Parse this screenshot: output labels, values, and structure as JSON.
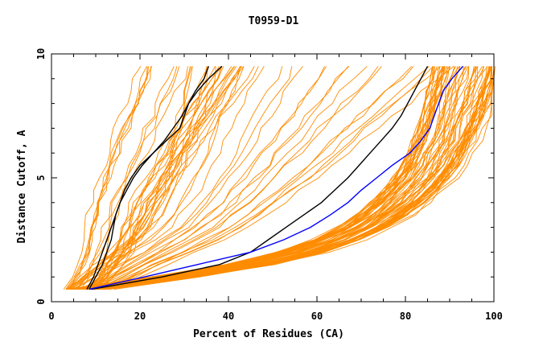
{
  "chart_data": {
    "type": "line",
    "title": "T0959-D1",
    "xlabel": "Percent of Residues (CA)",
    "ylabel": "Distance Cutoff, A",
    "xlim": [
      0,
      100
    ],
    "ylim": [
      0,
      10
    ],
    "x_ticks": [
      0,
      20,
      40,
      60,
      80,
      100
    ],
    "y_ticks": [
      0,
      5,
      10
    ],
    "colors": {
      "models": "#ff8c00",
      "highlight": "#000000",
      "best": "#0000ff",
      "axes": "#000000"
    },
    "cutoffs": [
      0.5,
      1,
      1.5,
      2,
      2.5,
      3,
      3.5,
      4,
      4.5,
      5,
      5.5,
      6,
      6.5,
      7,
      7.5,
      8,
      8.5,
      9,
      9.5
    ],
    "highlight_series": [
      {
        "name": "black-1",
        "color": "#000000",
        "values": [
          8,
          9.5,
          10.5,
          11.5,
          12.5,
          13.5,
          14.5,
          15.5,
          17,
          18.5,
          20.5,
          23,
          25.5,
          27.5,
          29.5,
          31,
          33,
          35.5,
          38.5
        ]
      },
      {
        "name": "black-2",
        "color": "#000000",
        "values": [
          8.5,
          10,
          11.5,
          12.5,
          13.5,
          14,
          14.5,
          15.5,
          16.5,
          18,
          20,
          23,
          26,
          29,
          30,
          31,
          32.5,
          34.5,
          35.5
        ]
      },
      {
        "name": "black-3",
        "color": "#000000",
        "values": [
          9,
          25,
          38,
          45,
          49,
          53,
          57,
          61,
          64,
          67,
          69.5,
          72,
          74.5,
          77,
          79,
          80.5,
          82,
          83.5,
          85
        ]
      },
      {
        "name": "blue-best",
        "color": "#0000ff",
        "values": [
          8.5,
          21,
          33,
          45,
          52.5,
          58.5,
          63,
          67,
          70,
          73.5,
          77,
          81,
          83.5,
          85.5,
          86.5,
          87.5,
          88.5,
          90.5,
          93
        ]
      }
    ],
    "model_families": [
      {
        "name": "left-bundle",
        "count": 26,
        "values": [
          7,
          9.5,
          11,
          12.5,
          13.5,
          14.5,
          15.5,
          16.5,
          18,
          19.5,
          21,
          22.5,
          24,
          25.5,
          27,
          28.5,
          30,
          31.5,
          33
        ],
        "spread_start": 4,
        "spread_end": 14
      },
      {
        "name": "middle-fan",
        "count": 26,
        "values": [
          8,
          13,
          18,
          23,
          28,
          32,
          35,
          38,
          40.5,
          43,
          45,
          47,
          49,
          51,
          53,
          55,
          57,
          59,
          61
        ],
        "spread_start": 5,
        "spread_end": 30
      },
      {
        "name": "right-bundle",
        "count": 70,
        "values": [
          9,
          28,
          45,
          57,
          65,
          71,
          75.5,
          79,
          82,
          84.5,
          86.5,
          88,
          89.5,
          90.5,
          91.5,
          92.5,
          93.5,
          94.5,
          95.5
        ],
        "spread_start": 5,
        "spread_end": 9
      }
    ]
  }
}
